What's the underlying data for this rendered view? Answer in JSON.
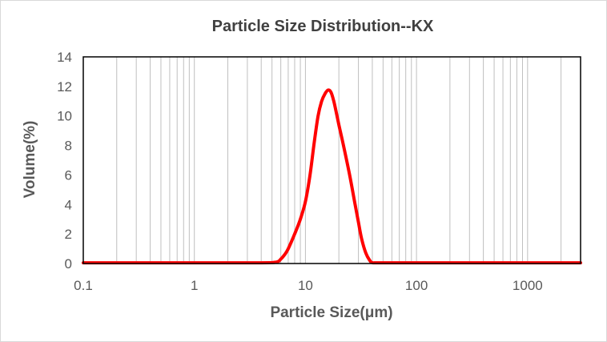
{
  "chart_data": {
    "type": "line",
    "title": "Particle Size Distribution--KX",
    "xlabel": "Particle Size(μm)",
    "ylabel": "Volume(%)",
    "x_scale": "log",
    "xlim": [
      0.1,
      3000
    ],
    "ylim": [
      0,
      14
    ],
    "x_ticks": [
      0.1,
      1,
      10,
      100,
      1000
    ],
    "x_tick_labels": [
      "0.1",
      "1",
      "10",
      "100",
      "1000"
    ],
    "y_ticks": [
      0,
      2,
      4,
      6,
      8,
      10,
      12,
      14
    ],
    "y_tick_labels": [
      "0",
      "2",
      "4",
      "6",
      "8",
      "10",
      "12",
      "14"
    ],
    "grid_x": true,
    "grid_y": false,
    "legend": "none",
    "series": [
      {
        "name": "Volume",
        "color": "#ff0000",
        "x": [
          0.1,
          1,
          4,
          5.5,
          6,
          6.5,
          7,
          8,
          9,
          10,
          11,
          12,
          13,
          14,
          15,
          16,
          17,
          18,
          19,
          20,
          22,
          25,
          28,
          30,
          32,
          35,
          38,
          40,
          45,
          100,
          1000,
          3000
        ],
        "y": [
          0.05,
          0.05,
          0.05,
          0.1,
          0.3,
          0.6,
          1.0,
          2.0,
          3.0,
          4.2,
          6.0,
          8.2,
          10.0,
          11.0,
          11.5,
          11.75,
          11.6,
          11.0,
          10.2,
          9.4,
          8.0,
          6.0,
          4.0,
          2.8,
          1.7,
          0.7,
          0.2,
          0.06,
          0.05,
          0.05,
          0.05,
          0.05
        ]
      }
    ]
  }
}
